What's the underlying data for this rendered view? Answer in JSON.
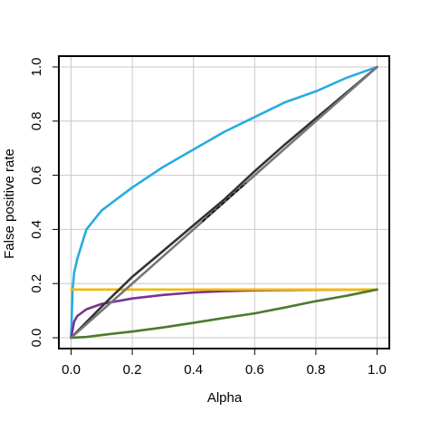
{
  "chart_data": {
    "type": "line",
    "title": "",
    "xlabel": "Alpha",
    "ylabel": "False positive rate",
    "xlim": [
      -0.04,
      1.04
    ],
    "ylim": [
      -0.04,
      1.04
    ],
    "xticks": [
      0.0,
      0.2,
      0.4,
      0.6,
      0.8,
      1.0
    ],
    "yticks": [
      0.0,
      0.2,
      0.4,
      0.6,
      0.8,
      1.0
    ],
    "xtick_labels": [
      "0.0",
      "0.2",
      "0.4",
      "0.6",
      "0.8",
      "1.0"
    ],
    "ytick_labels": [
      "0.0",
      "0.2",
      "0.4",
      "0.6",
      "0.8",
      "1.0"
    ],
    "grid": true,
    "legend": false,
    "series": [
      {
        "color": "#29abe2",
        "points": [
          [
            0,
            0
          ],
          [
            0.005,
            0.18
          ],
          [
            0.01,
            0.24
          ],
          [
            0.02,
            0.29
          ],
          [
            0.05,
            0.4
          ],
          [
            0.1,
            0.47
          ],
          [
            0.2,
            0.555
          ],
          [
            0.3,
            0.63
          ],
          [
            0.4,
            0.695
          ],
          [
            0.5,
            0.76
          ],
          [
            0.6,
            0.815
          ],
          [
            0.7,
            0.87
          ],
          [
            0.8,
            0.91
          ],
          [
            0.9,
            0.96
          ],
          [
            1.0,
            1.0
          ]
        ]
      },
      {
        "color": "#7b3294",
        "points": [
          [
            0,
            0
          ],
          [
            0.01,
            0.06
          ],
          [
            0.02,
            0.08
          ],
          [
            0.05,
            0.105
          ],
          [
            0.1,
            0.125
          ],
          [
            0.2,
            0.145
          ],
          [
            0.3,
            0.158
          ],
          [
            0.4,
            0.167
          ],
          [
            0.5,
            0.172
          ],
          [
            0.6,
            0.175
          ],
          [
            0.8,
            0.177
          ],
          [
            1.0,
            0.178
          ]
        ]
      },
      {
        "color": "#f5b800",
        "points": [
          [
            0,
            0.178
          ],
          [
            1.0,
            0.178
          ]
        ]
      },
      {
        "color": "#4b7b2c",
        "points": [
          [
            0,
            0
          ],
          [
            0.05,
            0.003
          ],
          [
            0.1,
            0.01
          ],
          [
            0.2,
            0.023
          ],
          [
            0.3,
            0.038
          ],
          [
            0.4,
            0.055
          ],
          [
            0.5,
            0.073
          ],
          [
            0.6,
            0.09
          ],
          [
            0.7,
            0.112
          ],
          [
            0.8,
            0.135
          ],
          [
            0.9,
            0.155
          ],
          [
            1.0,
            0.178
          ]
        ]
      },
      {
        "color": "#333333",
        "points": [
          [
            0,
            0
          ],
          [
            0.1,
            0.115
          ],
          [
            0.2,
            0.225
          ],
          [
            0.3,
            0.32
          ],
          [
            0.4,
            0.415
          ],
          [
            0.5,
            0.51
          ],
          [
            0.6,
            0.615
          ],
          [
            0.7,
            0.715
          ],
          [
            0.8,
            0.81
          ],
          [
            0.9,
            0.905
          ],
          [
            1.0,
            1.0
          ]
        ]
      },
      {
        "color": "#777777",
        "points": [
          [
            0,
            0
          ],
          [
            0.1,
            0.1
          ],
          [
            0.2,
            0.2
          ],
          [
            0.3,
            0.3
          ],
          [
            0.4,
            0.4
          ],
          [
            0.5,
            0.5
          ],
          [
            0.6,
            0.6
          ],
          [
            0.7,
            0.7
          ],
          [
            0.8,
            0.8
          ],
          [
            0.9,
            0.9
          ],
          [
            1.0,
            1.0
          ]
        ]
      },
      {
        "color": "#000000",
        "dashed": true,
        "points": [
          [
            0.43,
            0.43
          ],
          [
            0.5,
            0.5
          ],
          [
            0.57,
            0.57
          ]
        ]
      }
    ]
  }
}
